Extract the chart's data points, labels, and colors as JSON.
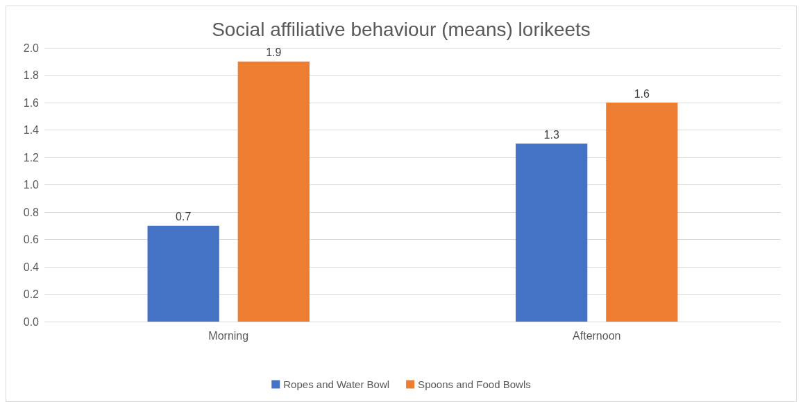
{
  "chart_data": {
    "type": "bar",
    "title": "Social affiliative behaviour (means) lorikeets",
    "categories": [
      "Morning",
      "Afternoon"
    ],
    "series": [
      {
        "name": "Ropes and Water Bowl",
        "color": "#4472c4",
        "values": [
          0.7,
          1.3
        ]
      },
      {
        "name": "Spoons and Food Bowls",
        "color": "#ed7d31",
        "values": [
          1.9,
          1.6
        ]
      }
    ],
    "ylim": [
      0,
      2.0
    ],
    "yticks": [
      {
        "value": 0,
        "label": "0.0"
      },
      {
        "value": 0.2,
        "label": "0.2"
      },
      {
        "value": 0.4,
        "label": "0.4"
      },
      {
        "value": 0.6,
        "label": "0.6"
      },
      {
        "value": 0.8,
        "label": "0.8"
      },
      {
        "value": 1.0,
        "label": "1.0"
      },
      {
        "value": 1.2,
        "label": "1.2"
      },
      {
        "value": 1.4,
        "label": "1.4"
      },
      {
        "value": 1.6,
        "label": "1.6"
      },
      {
        "value": 1.8,
        "label": "1.8"
      },
      {
        "value": 2.0,
        "label": "2.0"
      }
    ],
    "grid": "y",
    "legend": "bottom",
    "data_labels": true
  }
}
